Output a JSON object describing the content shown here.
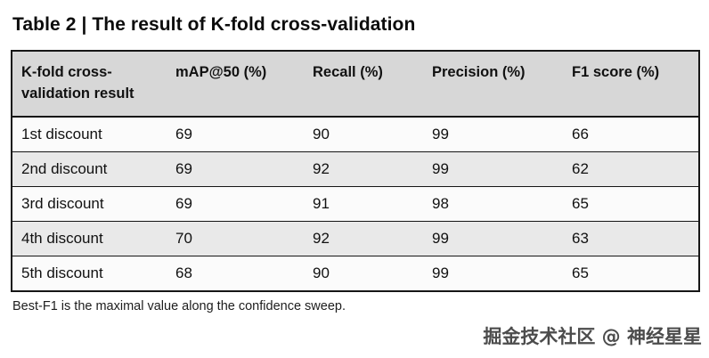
{
  "title": "Table 2 | The result of K-fold cross-validation",
  "table": {
    "headers": [
      "K-fold cross-validation result",
      "mAP@50 (%)",
      "Recall (%)",
      "Precision (%)",
      "F1 score (%)"
    ],
    "rows": [
      [
        "1st discount",
        "69",
        "90",
        "99",
        "66"
      ],
      [
        "2nd discount",
        "69",
        "92",
        "99",
        "62"
      ],
      [
        "3rd discount",
        "69",
        "91",
        "98",
        "65"
      ],
      [
        "4th discount",
        "70",
        "92",
        "99",
        "63"
      ],
      [
        "5th discount",
        "68",
        "90",
        "99",
        "65"
      ]
    ]
  },
  "footnote": "Best-F1 is the maximal value along the confidence sweep.",
  "watermark": "掘金技术社区 @ 神经星星",
  "colors": {
    "header_background": "#d7d7d7",
    "alt_row_background": "#e9e9e9",
    "border": "#161616",
    "text": "#111111"
  },
  "chart_data": {
    "type": "table",
    "title": "Table 2 | The result of K-fold cross-validation",
    "columns": [
      "K-fold cross-validation result",
      "mAP@50 (%)",
      "Recall (%)",
      "Precision (%)",
      "F1 score (%)"
    ],
    "rows": [
      [
        "1st discount",
        69,
        90,
        99,
        66
      ],
      [
        "2nd discount",
        69,
        92,
        99,
        62
      ],
      [
        "3rd discount",
        69,
        91,
        98,
        65
      ],
      [
        "4th discount",
        70,
        92,
        99,
        63
      ],
      [
        "5th discount",
        68,
        90,
        99,
        65
      ]
    ],
    "footnote": "Best-F1 is the maximal value along the confidence sweep."
  }
}
